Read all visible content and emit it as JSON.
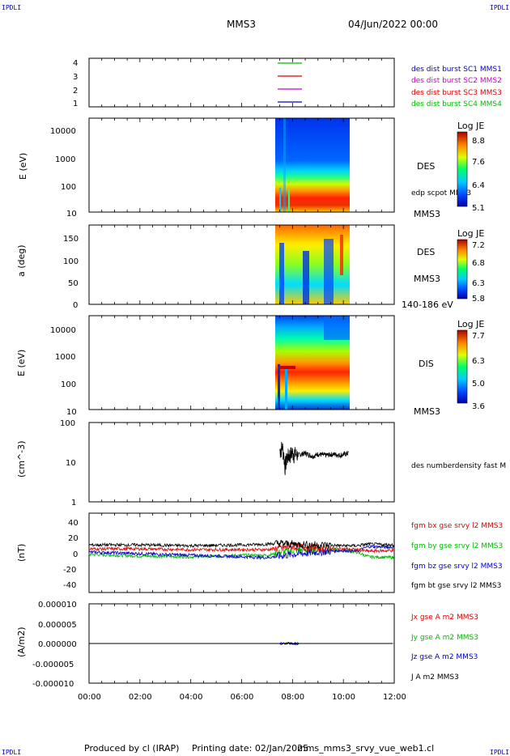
{
  "header": {
    "spacecraft": "MMS3",
    "date": "04/Jun/2022 00:00",
    "corner_left": "IPDLI",
    "corner_right": "IPDLI"
  },
  "footer": {
    "produced_by": "Produced by cl (IRAP)",
    "printing_date": "Printing date: 02/Jan/2025",
    "filename": "mms_mms3_srvy_vue_web1.cl"
  },
  "time_axis": {
    "ticks": [
      "00:00",
      "02:00",
      "04:00",
      "06:00",
      "08:00",
      "10:00",
      "12:00"
    ],
    "range_hours": [
      0,
      12
    ]
  },
  "colors": {
    "sc1": "#0000cc",
    "sc2": "#cc00cc",
    "sc3": "#dd0000",
    "sc4": "#00bb00",
    "black": "#000000"
  },
  "chart_data": [
    {
      "type": "line",
      "panel": "burst-availability",
      "y_ticks": [
        "4",
        "3",
        "2",
        "1"
      ],
      "ylim": [
        0.5,
        4.5
      ],
      "series": [
        {
          "name": "des dist burst SC1 MMS1",
          "color": "#0000cc",
          "y": 1,
          "x": [
            "07:35",
            "08:10"
          ]
        },
        {
          "name": "des dist burst SC2 MMS2",
          "color": "#cc00cc",
          "y": 2,
          "x": [
            "07:35",
            "08:10"
          ]
        },
        {
          "name": "des dist burst SC3 MMS3",
          "color": "#dd0000",
          "y": 3,
          "x": [
            "07:35",
            "08:10"
          ]
        },
        {
          "name": "des dist burst SC4 MMS4",
          "color": "#00bb00",
          "y": 4,
          "x": [
            "07:35",
            "08:10"
          ]
        }
      ]
    },
    {
      "type": "heatmap",
      "panel": "des-energy-spectrogram",
      "ylabel": "E (eV)",
      "y_scale": "log",
      "y_ticks": [
        "10000",
        "1000",
        "100",
        "10"
      ],
      "ylim": [
        10,
        30000
      ],
      "data_interval": [
        "07:35",
        "10:25"
      ],
      "label": "DES",
      "sublabel": "MMS3",
      "overlay": "edp scpot MMS3",
      "colorbar": {
        "title": "Log JE",
        "ticks": [
          "8.8",
          "7.6",
          "6.4",
          "5.1"
        ],
        "range": [
          5.1,
          8.8
        ]
      }
    },
    {
      "type": "heatmap",
      "panel": "des-pitch-angle",
      "ylabel": "a (deg)",
      "y_ticks": [
        "150",
        "100",
        "50",
        "0"
      ],
      "ylim": [
        0,
        180
      ],
      "data_interval": [
        "07:35",
        "10:25"
      ],
      "label": "DES",
      "sublabel": "MMS3",
      "energy_range": "140-186 eV",
      "colorbar": {
        "title": "Log JE",
        "ticks": [
          "7.2",
          "6.8",
          "6.3",
          "5.8"
        ],
        "range": [
          5.8,
          7.2
        ]
      }
    },
    {
      "type": "heatmap",
      "panel": "dis-energy-spectrogram",
      "ylabel": "E (eV)",
      "y_scale": "log",
      "y_ticks": [
        "10000",
        "1000",
        "100",
        "10"
      ],
      "ylim": [
        10,
        30000
      ],
      "data_interval": [
        "07:35",
        "10:25"
      ],
      "label": "DIS",
      "sublabel": "MMS3",
      "colorbar": {
        "title": "Log JE",
        "ticks": [
          "7.7",
          "6.3",
          "5.0",
          "3.6"
        ],
        "range": [
          3.6,
          7.7
        ]
      }
    },
    {
      "type": "line",
      "panel": "density",
      "ylabel": "(cm^-3)",
      "y_scale": "log",
      "y_ticks": [
        "100",
        "10",
        "1"
      ],
      "ylim": [
        1,
        100
      ],
      "series": [
        {
          "name": "des numberdensity fast M",
          "color": "#000000",
          "x": [
            7.5,
            7.6,
            7.7,
            7.8,
            8.0,
            8.2,
            8.5,
            8.8,
            9.0,
            9.3,
            9.6,
            9.9,
            10.2
          ],
          "y": [
            20,
            25,
            8,
            14,
            18,
            15,
            17,
            14,
            16,
            15,
            16,
            15,
            17
          ]
        }
      ]
    },
    {
      "type": "line",
      "panel": "magnetic-field",
      "ylabel": "(nT)",
      "y_ticks": [
        "40",
        "20",
        "0",
        "-20",
        "-40"
      ],
      "ylim": [
        -50,
        50
      ],
      "series": [
        {
          "name": "fgm bx gse srvy l2 MMS3",
          "color": "#dd0000",
          "x": [
            0,
            2,
            4,
            6,
            7,
            7.5,
            8,
            9,
            10,
            10.5,
            11,
            12
          ],
          "y": [
            5,
            5,
            4,
            4,
            4,
            6,
            8,
            6,
            5,
            4,
            2,
            3
          ]
        },
        {
          "name": "fgm by gse srvy l2 MMS3",
          "color": "#00bb00",
          "x": [
            0,
            2,
            4,
            6,
            7,
            7.5,
            8,
            9,
            10,
            10.5,
            11,
            12
          ],
          "y": [
            -2,
            -4,
            -5,
            -3,
            -3,
            0,
            3,
            4,
            3,
            1,
            -5,
            -6
          ]
        },
        {
          "name": "fgm bz gse srvy l2 MMS3",
          "color": "#0000cc",
          "x": [
            0,
            2,
            4,
            6,
            7,
            7.5,
            8,
            9,
            10,
            10.5,
            11,
            12
          ],
          "y": [
            1,
            -1,
            -3,
            -5,
            -6,
            -4,
            -2,
            1,
            3,
            2,
            8,
            7
          ]
        },
        {
          "name": "fgm bt gse srvy l2 MMS3",
          "color": "#000000",
          "x": [
            0,
            2,
            4,
            6,
            7,
            7.5,
            8,
            9,
            10,
            10.5,
            11,
            12
          ],
          "y": [
            10,
            10,
            9,
            10,
            11,
            12,
            11,
            10,
            9,
            9,
            11,
            10
          ]
        }
      ]
    },
    {
      "type": "line",
      "panel": "current-density",
      "ylabel": "(A/m2)",
      "y_ticks": [
        "0.000010",
        "0.000005",
        "0.000000",
        "-0.000005",
        "-0.000010"
      ],
      "ylim": [
        -1e-05,
        1e-05
      ],
      "series": [
        {
          "name": "Jx gse A m2 MMS3",
          "color": "#dd0000",
          "x": [
            0,
            12
          ],
          "y": [
            0,
            0
          ]
        },
        {
          "name": "Jy gse A m2 MMS3",
          "color": "#00bb00",
          "x": [
            0,
            12
          ],
          "y": [
            0,
            0
          ]
        },
        {
          "name": "Jz gse A m2 MMS3",
          "color": "#0000cc",
          "x": [
            0,
            12
          ],
          "y": [
            0,
            0
          ]
        },
        {
          "name": "J A m2 MMS3",
          "color": "#000000",
          "x": [
            0,
            12
          ],
          "y": [
            0,
            0
          ]
        }
      ]
    }
  ]
}
